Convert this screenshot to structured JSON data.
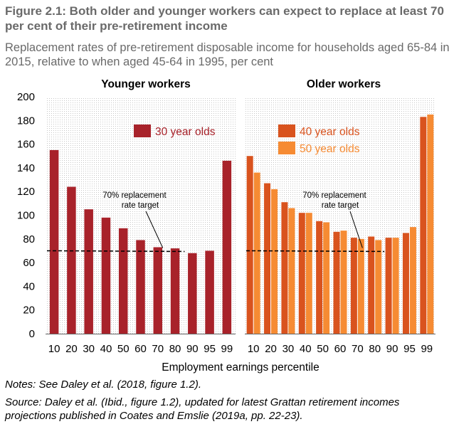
{
  "header": {
    "title": "Figure 2.1: Both older and younger workers can expect to replace at least 70 per cent of their pre-retirement income",
    "subtitle": "Replacement rates of pre-retirement disposable income for households aged 65-84 in 2015, relative to when aged 45-64 in 1995, per cent"
  },
  "footer": {
    "notes": "Notes: See Daley et al. (2018, figure 1.2).",
    "source": "Source: Daley et al. (Ibid., figure 1.2), updated for latest Grattan retirement incomes projections published in Coates and Emslie (2019a, pp. 22-23)."
  },
  "chart_data": {
    "type": "bar",
    "xlabel": "Employment earnings percentile",
    "ylabel": "",
    "ylim": [
      0,
      200
    ],
    "yticks": [
      "0",
      "20",
      "40",
      "60",
      "80",
      "100",
      "120",
      "140",
      "160",
      "180",
      "200"
    ],
    "categories": [
      "10",
      "20",
      "30",
      "40",
      "50",
      "60",
      "70",
      "80",
      "90",
      "95",
      "99"
    ],
    "colors": {
      "red": "#a8222a",
      "dark_orange": "#d9531e",
      "light_orange": "#f68b33",
      "text": "#000000"
    },
    "target": {
      "value": 70,
      "label_line1": "70% replacement",
      "label_line2": "rate target"
    },
    "panels": [
      {
        "title": "Younger workers",
        "series": [
          {
            "name": "30 year olds",
            "color": "#a8222a",
            "values": [
              155,
              124,
              105,
              98,
              89,
              79,
              73,
              72,
              68,
              70,
              146
            ]
          }
        ]
      },
      {
        "title": "Older workers",
        "series": [
          {
            "name": "40 year olds",
            "color": "#d9531e",
            "values": [
              150,
              127,
              111,
              102,
              95,
              86,
              81,
              82,
              81,
              85,
              183
            ]
          },
          {
            "name": "50 year olds",
            "color": "#f68b33",
            "values": [
              136,
              122,
              106,
              102,
              94,
              87,
              80,
              79,
              81,
              90,
              185
            ]
          }
        ]
      }
    ]
  }
}
